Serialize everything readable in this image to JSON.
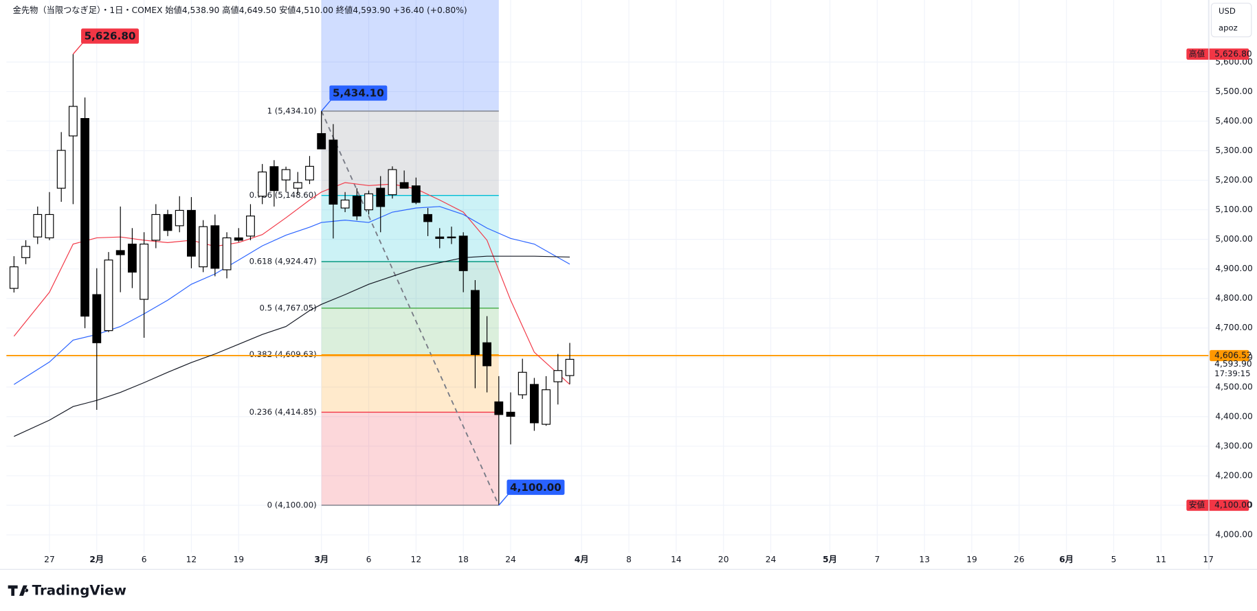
{
  "chart_data": {
    "type": "candlestick",
    "title": "金先物（当限つなぎ足）・1日・COMEX",
    "ohlc_legend": [
      {
        "label": "始値",
        "value": "4,538.90"
      },
      {
        "label": "高値",
        "value": "4,649.50"
      },
      {
        "label": "安値",
        "value": "4,510.00"
      },
      {
        "label": "終値",
        "value": "4,593.90"
      }
    ],
    "change": "+36.40 (+0.80%)",
    "currency": "USD",
    "account": "apoz",
    "brand": "TradingView",
    "up_color": "#ffffff",
    "down_color": "#000000",
    "x": [
      -26,
      -25,
      -24,
      -23,
      -22,
      -21,
      -20,
      -19,
      -18,
      -17,
      -16,
      -15,
      -14,
      -13,
      -12,
      -11,
      -10,
      -9,
      -8,
      -7,
      -6,
      -5,
      -4,
      -3,
      -2,
      -1,
      0,
      1,
      2,
      3,
      4,
      5,
      6,
      7,
      8,
      9,
      10,
      11,
      12,
      13,
      14,
      15,
      16,
      17,
      18,
      19,
      20,
      21
    ],
    "open": [
      4834,
      4938,
      5008,
      5005,
      5173,
      5350,
      5409,
      4813,
      4691,
      4962,
      4984,
      4797,
      4997,
      5084,
      5046,
      5098,
      4907,
      5046,
      4897,
      5005,
      5011,
      5146,
      5246,
      5201,
      5173,
      5201,
      5358,
      5336,
      5106,
      5146,
      5100,
      5173,
      5151,
      5192,
      5181,
      5084,
      5008,
      5008,
      5011,
      4827,
      4650,
      4450,
      4415,
      4474,
      4509,
      4374,
      4518,
      4538.9
    ],
    "high": [
      4943,
      4997,
      5111,
      5160,
      5363,
      5626.8,
      5480,
      4902,
      4957,
      5111,
      5038,
      5024,
      5119,
      5100,
      5146,
      5143,
      5065,
      5084,
      5024,
      5038,
      5119,
      5255,
      5268,
      5246,
      5228,
      5282,
      5434.1,
      5390,
      5160,
      5173,
      5165,
      5214,
      5247,
      5233,
      5209,
      5106,
      5038,
      5043,
      5024,
      4862,
      4740,
      4537,
      4482,
      4596,
      4531,
      4537,
      4612,
      4649.5
    ],
    "low": [
      4820,
      4916,
      4984,
      4997,
      5127,
      5119,
      4699,
      4423,
      4686,
      4821,
      4835,
      4667,
      4970,
      5011,
      5024,
      4902,
      4889,
      4875,
      4868,
      4991,
      4997,
      5119,
      5111,
      5160,
      5154,
      5187,
      5320,
      5003,
      5092,
      5065,
      5084,
      5024,
      5138,
      5173,
      5119,
      5011,
      4970,
      4984,
      4821,
      4496,
      4482,
      4100,
      4306,
      4460,
      4352,
      4369,
      4441,
      4510
    ],
    "close": [
      4907,
      4976,
      5084,
      5084,
      5301,
      5450,
      4740,
      4650,
      4930,
      4948,
      4889,
      4984,
      5084,
      5030,
      5098,
      4943,
      5043,
      4902,
      5005,
      4997,
      5079,
      5228,
      5165,
      5236,
      5192,
      5247,
      5306,
      5119,
      5133,
      5079,
      5154,
      5111,
      5236,
      5173,
      5125,
      5060,
      5003,
      5005,
      4894,
      4610,
      4572,
      4407,
      4401,
      4550,
      4379,
      4491,
      4556,
      4593.9
    ],
    "moving_averages": [
      {
        "color": "#f23645",
        "x": [
          -26,
          -23,
          -21,
          -19,
          -17,
          -15,
          -13,
          -11,
          -9,
          -7,
          -5,
          -3,
          -1,
          0,
          2,
          4,
          6,
          8,
          10,
          12,
          14,
          16,
          18,
          21
        ],
        "values": [
          4672,
          4821,
          4984,
          5005,
          5008,
          4997,
          4989,
          4997,
          4976,
          4989,
          5016,
          5073,
          5133,
          5160,
          5192,
          5182,
          5187,
          5171,
          5133,
          5092,
          4997,
          4794,
          4618,
          4509
        ]
      },
      {
        "color": "#2962ff",
        "x": [
          -26,
          -23,
          -21,
          -19,
          -17,
          -15,
          -13,
          -11,
          -9,
          -7,
          -5,
          -3,
          -1,
          0,
          2,
          4,
          6,
          8,
          10,
          12,
          14,
          16,
          18,
          21
        ],
        "values": [
          4509,
          4585,
          4659,
          4678,
          4705,
          4748,
          4794,
          4848,
          4883,
          4930,
          4978,
          5014,
          5041,
          5057,
          5065,
          5057,
          5092,
          5106,
          5111,
          5084,
          5038,
          5003,
          4984,
          4916
        ]
      },
      {
        "color": "#131722",
        "x": [
          -26,
          -23,
          -21,
          -19,
          -17,
          -15,
          -13,
          -11,
          -9,
          -7,
          -5,
          -3,
          -1,
          0,
          2,
          4,
          6,
          8,
          10,
          12,
          14,
          16,
          18,
          21
        ],
        "values": [
          4333,
          4388,
          4434,
          4455,
          4482,
          4515,
          4550,
          4583,
          4612,
          4645,
          4678,
          4705,
          4759,
          4780,
          4813,
          4848,
          4875,
          4902,
          4921,
          4938,
          4943,
          4943,
          4943,
          4940
        ]
      }
    ],
    "fibonacci": {
      "x": [
        0,
        15
      ],
      "zone_color": "#2962ff",
      "trend": {
        "x": [
          0,
          15
        ],
        "values": [
          5434.1,
          4100
        ]
      },
      "levels": [
        {
          "value": 5434.1,
          "label": "1 (5,434.10)",
          "color": "#787b86"
        },
        {
          "value": 5148.6,
          "label": "0.786 (5,148.60)",
          "color": "#00bcd4"
        },
        {
          "value": 4924.47,
          "label": "0.618 (4,924.47)",
          "color": "#089981"
        },
        {
          "value": 4767.05,
          "label": "0.5 (4,767.05)",
          "color": "#4caf50"
        },
        {
          "value": 4609.63,
          "label": "0.382 (4,609.63)",
          "color": "#ff9800"
        },
        {
          "value": 4414.85,
          "label": "0.236 (4,414.85)",
          "color": "#f23645"
        },
        {
          "value": 4100,
          "label": "0 (4,100.00)",
          "color": "#787b86"
        }
      ]
    },
    "hline": {
      "value": 4606.52,
      "label": "4,606.52",
      "color": "#ff9800"
    },
    "last_price": {
      "value": 4593.9,
      "label": "4,593.90",
      "countdown": "17:39:15"
    },
    "high_marker": {
      "tag": "高値",
      "value": 5626.8,
      "label": "5,626.80",
      "color": "#f23645"
    },
    "low_marker": {
      "tag": "安値",
      "value": 4100,
      "label": "4,100.00",
      "color": "#f23645"
    },
    "callouts": [
      {
        "x": -21,
        "value": 5626.8,
        "label": "5,626.80",
        "color": "#f23645"
      },
      {
        "x": 0,
        "value": 5434.1,
        "label": "5,434.10",
        "color": "#2962ff"
      },
      {
        "x": 15,
        "value": 4100,
        "label": "4,100.00",
        "color": "#2962ff"
      }
    ],
    "xlim": [
      -26.64,
      75.05
    ],
    "ylim": [
      3940,
      5810
    ],
    "grid": true,
    "xticks": [
      {
        "value": -23,
        "label": "27"
      },
      {
        "value": -19,
        "label": "2月"
      },
      {
        "value": -15,
        "label": "6"
      },
      {
        "value": -11,
        "label": "12"
      },
      {
        "value": -7,
        "label": "19"
      },
      {
        "value": 0,
        "label": "3月"
      },
      {
        "value": 4,
        "label": "6"
      },
      {
        "value": 8,
        "label": "12"
      },
      {
        "value": 12,
        "label": "18"
      },
      {
        "value": 16,
        "label": "24"
      },
      {
        "value": 22,
        "label": "4月"
      },
      {
        "value": 26,
        "label": "8"
      },
      {
        "value": 30,
        "label": "14"
      },
      {
        "value": 34,
        "label": "20"
      },
      {
        "value": 38,
        "label": "24"
      },
      {
        "value": 43,
        "label": "5月"
      },
      {
        "value": 47,
        "label": "7"
      },
      {
        "value": 51,
        "label": "13"
      },
      {
        "value": 55,
        "label": "19"
      },
      {
        "value": 59,
        "label": "26"
      },
      {
        "value": 63,
        "label": "6月"
      },
      {
        "value": 67,
        "label": "5"
      },
      {
        "value": 71,
        "label": "11"
      },
      {
        "value": 75,
        "label": "17"
      }
    ],
    "yticks": [
      {
        "value": 4000,
        "label": "4,000.00"
      },
      {
        "value": 4100,
        "label": "4,100.00"
      },
      {
        "value": 4200,
        "label": "4,200.00"
      },
      {
        "value": 4300,
        "label": "4,300.00"
      },
      {
        "value": 4400,
        "label": "4,400.00"
      },
      {
        "value": 4500,
        "label": "4,500.00"
      },
      {
        "value": 4600,
        "label": "4,600.00"
      },
      {
        "value": 4700,
        "label": "4,700.00"
      },
      {
        "value": 4800,
        "label": "4,800.00"
      },
      {
        "value": 4900,
        "label": "4,900.00"
      },
      {
        "value": 5000,
        "label": "5,000.00"
      },
      {
        "value": 5100,
        "label": "5,100.00"
      },
      {
        "value": 5200,
        "label": "5,200.00"
      },
      {
        "value": 5300,
        "label": "5,300.00"
      },
      {
        "value": 5400,
        "label": "5,400.00"
      },
      {
        "value": 5500,
        "label": "5,500.00"
      },
      {
        "value": 5600,
        "label": "5,600.00"
      }
    ]
  }
}
